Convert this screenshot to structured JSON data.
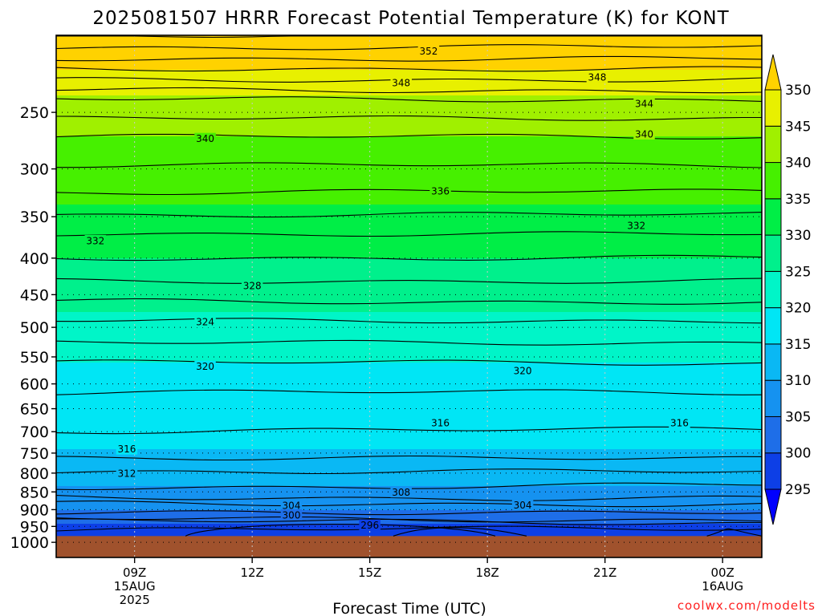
{
  "title": "2025081507 HRRR Forecast Potential Temperature (K) for KONT",
  "watermark": "coolwx.com/modelts",
  "chart_data": {
    "type": "heatmap",
    "title": "2025081507 HRRR Forecast Potential Temperature (K) for KONT",
    "xlabel": "Forecast Time (UTC)",
    "ylabel": "",
    "y_scale": "log",
    "y_reversed": true,
    "y_range": [
      1050,
      195
    ],
    "x_range": [
      "2025-08-15 07Z",
      "2025-08-16 01Z"
    ],
    "grid": true,
    "y_ticks": [
      250,
      300,
      350,
      400,
      450,
      500,
      550,
      600,
      650,
      700,
      750,
      800,
      850,
      900,
      950,
      1000
    ],
    "x_ticks": [
      {
        "hour": 9,
        "lines": [
          "09Z",
          "15AUG",
          "2025"
        ]
      },
      {
        "hour": 12,
        "lines": [
          "12Z"
        ]
      },
      {
        "hour": 15,
        "lines": [
          "15Z"
        ]
      },
      {
        "hour": 18,
        "lines": [
          "18Z"
        ]
      },
      {
        "hour": 21,
        "lines": [
          "21Z"
        ]
      },
      {
        "hour": 24,
        "lines": [
          "00Z",
          "16AUG"
        ]
      }
    ],
    "surface_pressure": 980,
    "surface_color": "#a0522d",
    "colorbar": {
      "levels": [
        295,
        300,
        305,
        310,
        315,
        320,
        325,
        330,
        335,
        340,
        345,
        350
      ],
      "labels": [
        "295",
        "300",
        "305",
        "310",
        "315",
        "320",
        "325",
        "330",
        "335",
        "340",
        "345",
        "350"
      ],
      "colors": [
        "#0000ff",
        "#0d3fe6",
        "#1e6ee8",
        "#1592f0",
        "#0ab8f4",
        "#00e6f5",
        "#00f5c8",
        "#00f08c",
        "#00ee46",
        "#46f000",
        "#a0f000",
        "#e8f000",
        "#ffd200"
      ],
      "extend": "both"
    },
    "theta_profile": [
      {
        "p": 195,
        "theta": 356
      },
      {
        "p": 240,
        "theta": 344
      },
      {
        "p": 270,
        "theta": 340
      },
      {
        "p": 330,
        "theta": 335.5
      },
      {
        "p": 370,
        "theta": 332
      },
      {
        "p": 430,
        "theta": 328
      },
      {
        "p": 490,
        "theta": 324
      },
      {
        "p": 560,
        "theta": 320
      },
      {
        "p": 650,
        "theta": 317
      },
      {
        "p": 740,
        "theta": 315
      },
      {
        "p": 800,
        "theta": 312
      },
      {
        "p": 850,
        "theta": 309
      },
      {
        "p": 900,
        "theta": 305
      },
      {
        "p": 940,
        "theta": 300
      },
      {
        "p": 970,
        "theta": 297
      },
      {
        "p": 980,
        "theta": 296
      }
    ],
    "contour_interval": 2,
    "contour_labels": [
      {
        "hour": 16.5,
        "p": 205,
        "value": "352"
      },
      {
        "hour": 15.8,
        "p": 227,
        "value": "348"
      },
      {
        "hour": 20.8,
        "p": 223,
        "value": "348"
      },
      {
        "hour": 22.0,
        "p": 243,
        "value": "344"
      },
      {
        "hour": 10.8,
        "p": 272,
        "value": "340"
      },
      {
        "hour": 22.0,
        "p": 268,
        "value": "340"
      },
      {
        "hour": 16.8,
        "p": 322,
        "value": "336"
      },
      {
        "hour": 21.8,
        "p": 360,
        "value": "332"
      },
      {
        "hour": 8.0,
        "p": 378,
        "value": "332"
      },
      {
        "hour": 12.0,
        "p": 437,
        "value": "328"
      },
      {
        "hour": 10.8,
        "p": 491,
        "value": "324"
      },
      {
        "hour": 10.8,
        "p": 567,
        "value": "320"
      },
      {
        "hour": 18.9,
        "p": 575,
        "value": "320"
      },
      {
        "hour": 8.8,
        "p": 740,
        "value": "316"
      },
      {
        "hour": 16.8,
        "p": 680,
        "value": "316"
      },
      {
        "hour": 22.9,
        "p": 680,
        "value": "316"
      },
      {
        "hour": 8.8,
        "p": 800,
        "value": "312"
      },
      {
        "hour": 15.8,
        "p": 850,
        "value": "308"
      },
      {
        "hour": 18.9,
        "p": 886,
        "value": "304"
      },
      {
        "hour": 13.0,
        "p": 888,
        "value": "304"
      },
      {
        "hour": 13.0,
        "p": 915,
        "value": "300"
      },
      {
        "hour": 15.0,
        "p": 946,
        "value": "296"
      }
    ]
  }
}
